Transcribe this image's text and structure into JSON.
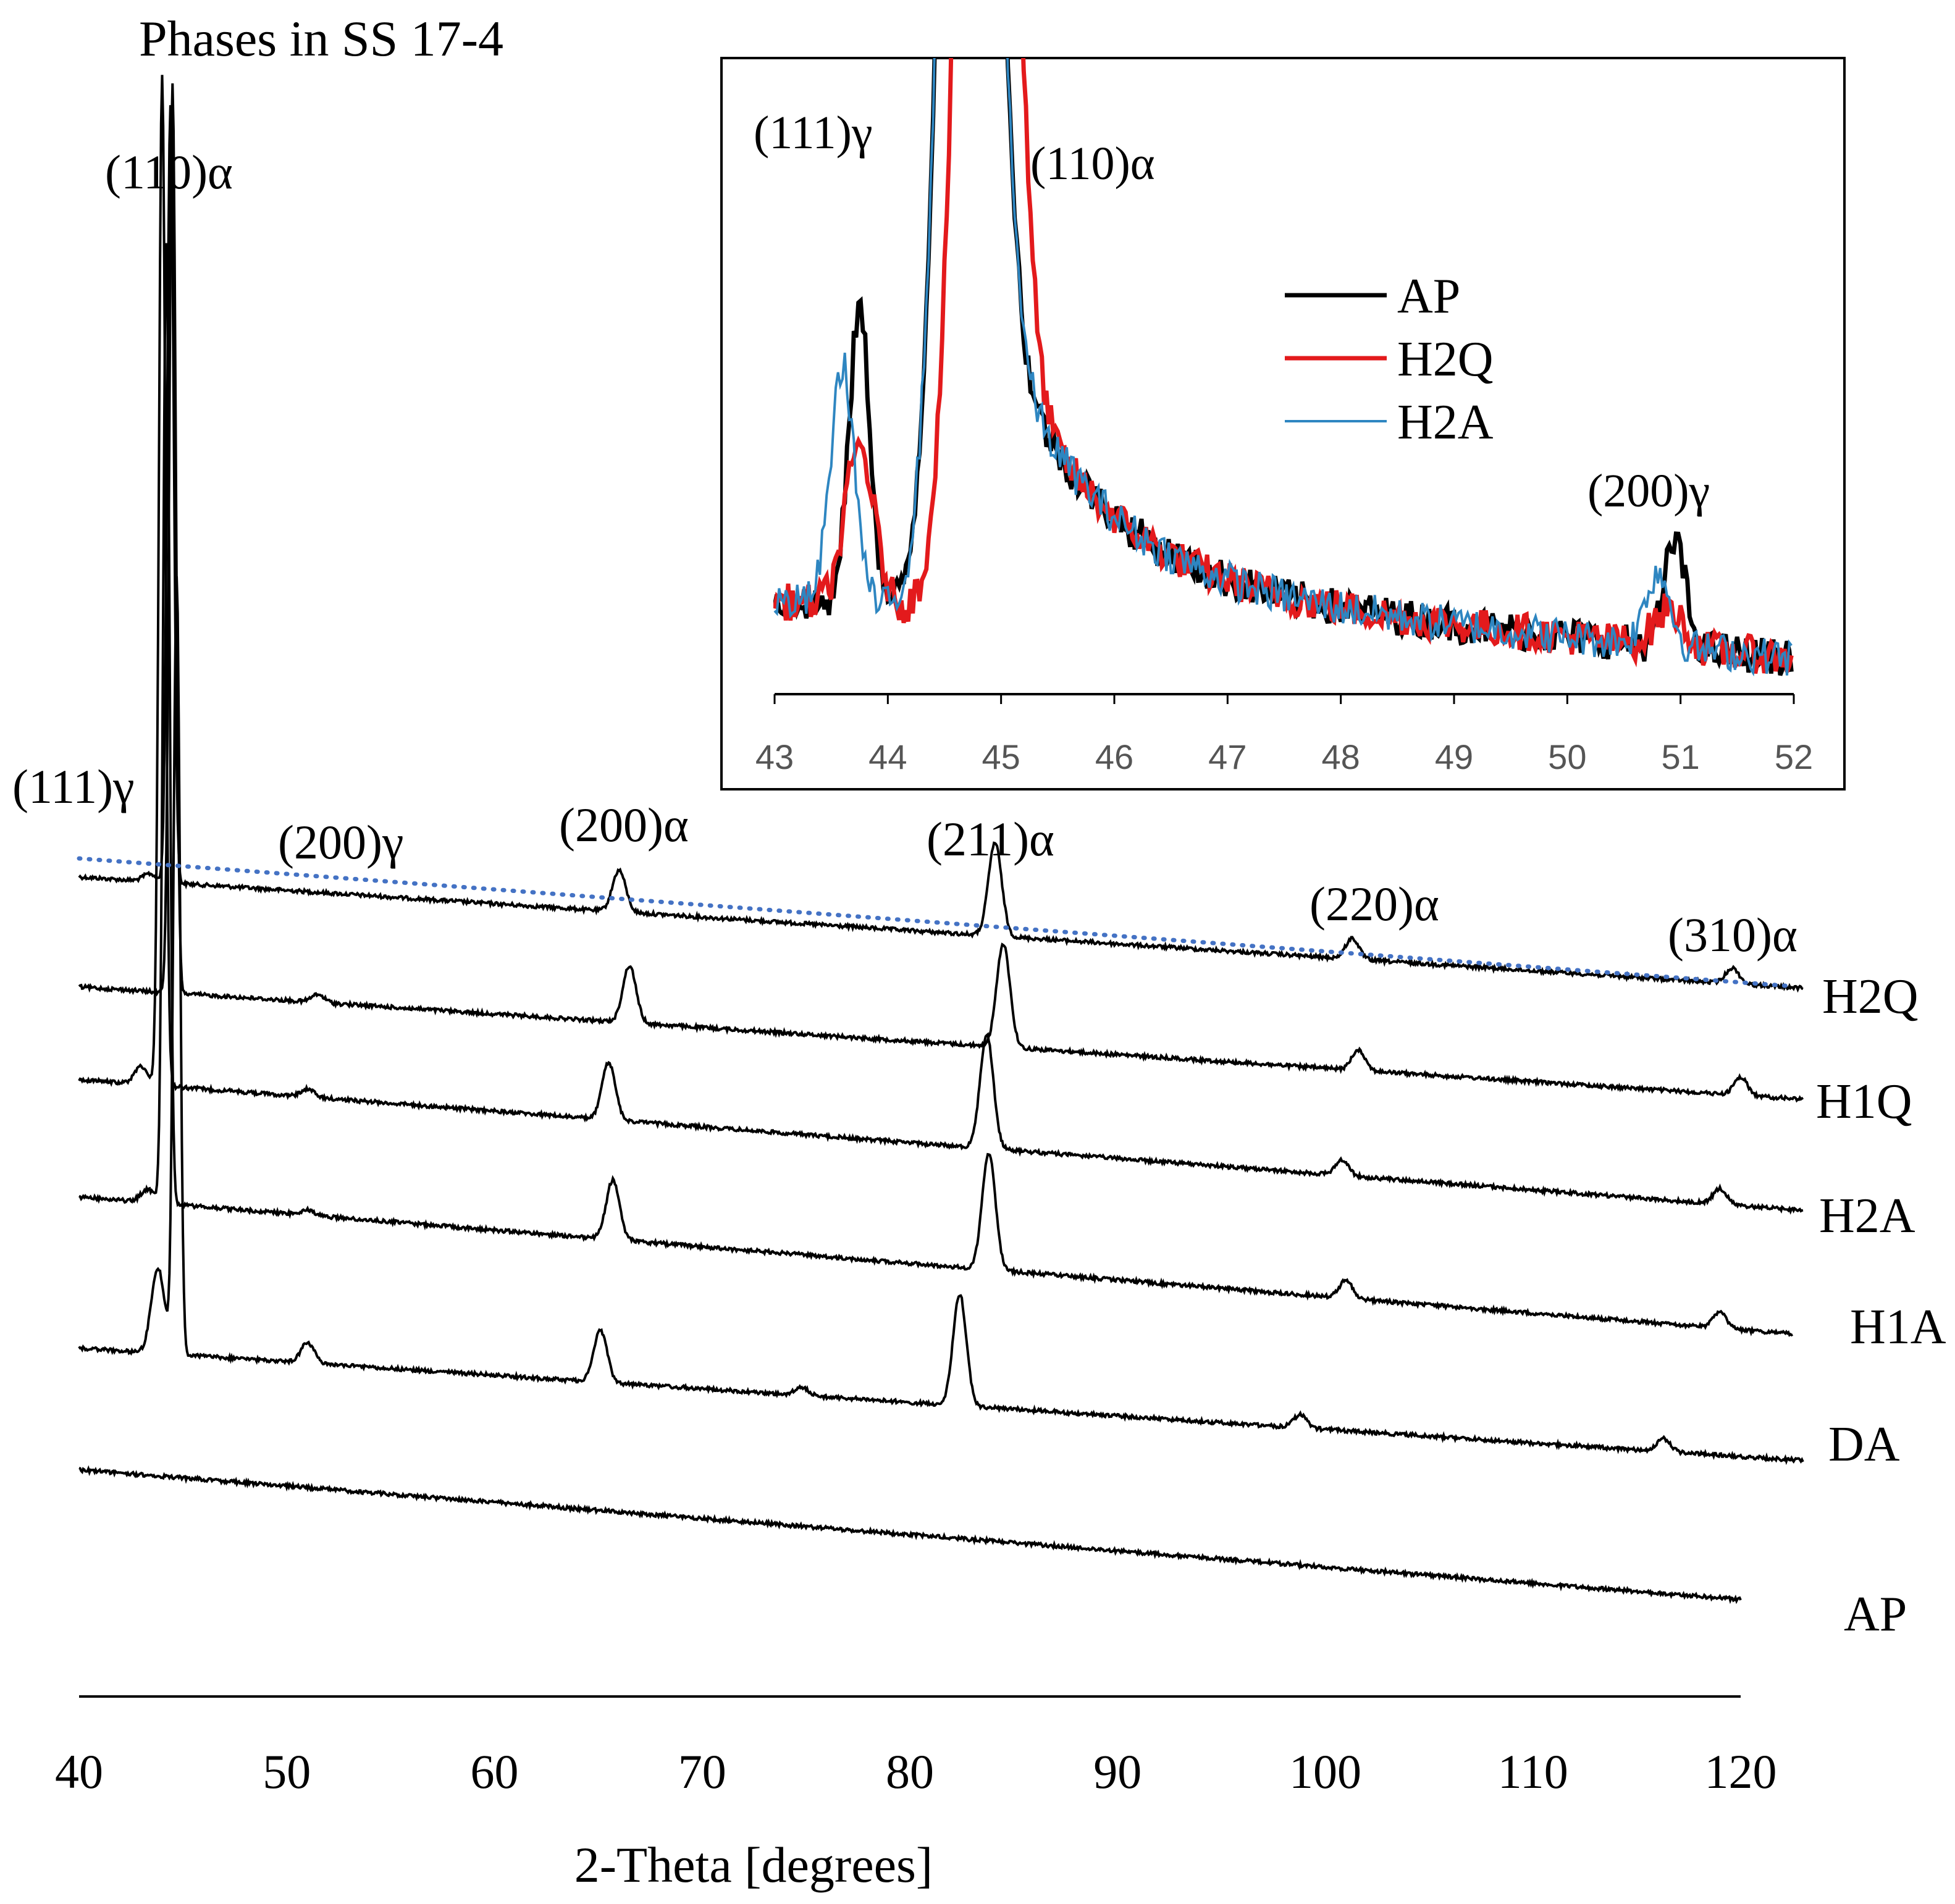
{
  "chart_data": [
    {
      "id": "main",
      "type": "line",
      "title": "Phases in SS 17-4",
      "xlabel": "2-Theta [degrees]",
      "ylabel": "",
      "xlim": [
        40,
        120
      ],
      "xticks": [
        40,
        50,
        60,
        70,
        80,
        90,
        100,
        110,
        120
      ],
      "y_axis_visible": false,
      "grid": false,
      "stacked_offset_traces": true,
      "series": [
        {
          "name": "H2Q",
          "x_end": 123,
          "peaks": [
            {
              "x": 43.4,
              "h": 0.3
            },
            {
              "x": 44.4,
              "h": 30
            },
            {
              "x": 66.0,
              "h": 1.6
            },
            {
              "x": 84.1,
              "h": 3.6
            },
            {
              "x": 101.3,
              "h": 0.8
            },
            {
              "x": 119.6,
              "h": 0.6
            }
          ]
        },
        {
          "name": "H1Q",
          "x_end": 123,
          "peaks": [
            {
              "x": 44.5,
              "h": 35
            },
            {
              "x": 51.5,
              "h": 0.3
            },
            {
              "x": 66.5,
              "h": 2.2
            },
            {
              "x": 84.5,
              "h": 4.0
            },
            {
              "x": 101.6,
              "h": 0.8
            },
            {
              "x": 120.0,
              "h": 0.7
            }
          ]
        },
        {
          "name": "H2A",
          "x_end": 123,
          "peaks": [
            {
              "x": 43.0,
              "h": 0.7
            },
            {
              "x": 44.0,
              "h": 39
            },
            {
              "x": 51.0,
              "h": 0.3
            },
            {
              "x": 65.5,
              "h": 2.2
            },
            {
              "x": 83.7,
              "h": 4.4
            },
            {
              "x": 100.8,
              "h": 0.6
            },
            {
              "x": 119.0,
              "h": 0.6
            }
          ]
        },
        {
          "name": "H1A",
          "x_end": 122.5,
          "peaks": [
            {
              "x": 43.3,
              "h": 0.5
            },
            {
              "x": 44.2,
              "h": 37
            },
            {
              "x": 51.0,
              "h": 0.2
            },
            {
              "x": 65.7,
              "h": 2.3
            },
            {
              "x": 83.8,
              "h": 4.5
            },
            {
              "x": 101.0,
              "h": 0.7
            },
            {
              "x": 119.0,
              "h": 0.6
            }
          ]
        },
        {
          "name": "DA",
          "x_end": 123,
          "peaks": [
            {
              "x": 43.8,
              "h": 3.3
            },
            {
              "x": 44.7,
              "h": 30
            },
            {
              "x": 51.0,
              "h": 0.8
            },
            {
              "x": 65.1,
              "h": 2.0
            },
            {
              "x": 74.8,
              "h": 0.3
            },
            {
              "x": 82.4,
              "h": 4.3
            },
            {
              "x": 98.8,
              "h": 0.5
            },
            {
              "x": 116.3,
              "h": 0.5
            }
          ]
        },
        {
          "name": "AP",
          "x_end": 120,
          "peaks": []
        }
      ],
      "reference_line": {
        "style": "dotted",
        "color": "#4472c4",
        "x": [
          40,
          122.5
        ],
        "note": "baseline trend over top trace"
      },
      "annotations": [
        {
          "text": "(111)γ",
          "x": 43.5
        },
        {
          "text": "(110)α",
          "x": 44.5
        },
        {
          "text": "(200)γ",
          "x": 51
        },
        {
          "text": "(200)α",
          "x": 65.6
        },
        {
          "text": "(211)α",
          "x": 84
        },
        {
          "text": "(220)α",
          "x": 101
        },
        {
          "text": "(310)α",
          "x": 119.5
        }
      ]
    },
    {
      "id": "inset",
      "type": "line",
      "xlim": [
        43,
        52
      ],
      "xticks": [
        43,
        44,
        45,
        46,
        47,
        48,
        49,
        50,
        51,
        52
      ],
      "legend_position": "top-right",
      "series": [
        {
          "name": "AP",
          "color": "#000000",
          "peaks": [
            {
              "x": 43.75,
              "h": 0.56
            },
            {
              "x": 44.7,
              "h": 3.0
            },
            {
              "x": 50.95,
              "h": 0.2
            }
          ]
        },
        {
          "name": "H2Q",
          "color": "#e31a1c",
          "peaks": [
            {
              "x": 43.75,
              "h": 0.3
            },
            {
              "x": 44.85,
              "h": 3.0
            },
            {
              "x": 50.9,
              "h": 0.07
            }
          ]
        },
        {
          "name": "H2A",
          "color": "#2e86c1",
          "peaks": [
            {
              "x": 43.6,
              "h": 0.45
            },
            {
              "x": 44.7,
              "h": 3.0
            },
            {
              "x": 50.8,
              "h": 0.14
            }
          ]
        }
      ],
      "annotations": [
        {
          "text": "(111)γ",
          "x": 43.7
        },
        {
          "text": "(110)α",
          "x": 45.3
        },
        {
          "text": "(200)γ",
          "x": 50.9
        }
      ]
    }
  ]
}
